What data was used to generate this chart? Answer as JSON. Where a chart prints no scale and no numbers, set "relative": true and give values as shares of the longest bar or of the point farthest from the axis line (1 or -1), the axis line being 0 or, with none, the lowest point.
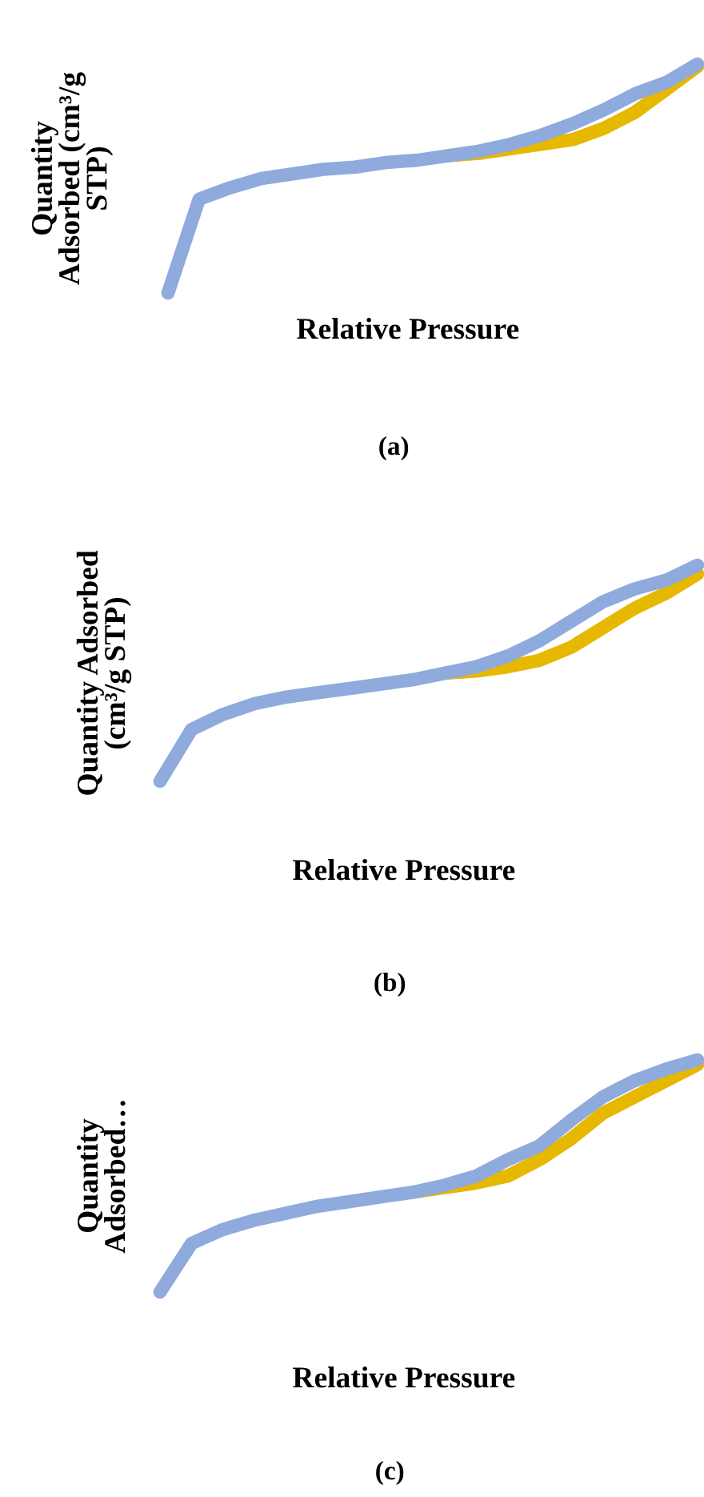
{
  "chart_data": [
    {
      "type": "line",
      "relative": true,
      "xlabel": "Relative Pressure",
      "ylabel": "Quantity\nAdsorbed (cm³/g\nSTP)",
      "annotations": [
        "(a)"
      ],
      "line_style": "solid",
      "categories": [
        null,
        null,
        null,
        null,
        null,
        null,
        null,
        null,
        null,
        null,
        null,
        null,
        null,
        null,
        null,
        null,
        null,
        null
      ],
      "series": [
        {
          "color": "#e6b800",
          "values": [
            null,
            null,
            null,
            null,
            null,
            null,
            null,
            null,
            null,
            0.6,
            0.61,
            0.63,
            0.65,
            0.67,
            0.72,
            0.79,
            0.89,
            0.99
          ]
        },
        {
          "color": "#8faadc",
          "values": [
            0,
            0.41,
            0.46,
            0.5,
            0.52,
            0.54,
            0.55,
            0.57,
            0.58,
            0.6,
            0.62,
            0.65,
            0.69,
            0.74,
            0.8,
            0.87,
            0.92,
            1.0
          ]
        }
      ]
    },
    {
      "type": "line",
      "relative": true,
      "xlabel": "Relative Pressure",
      "ylabel": "Quantity Adsorbed\n(cm³/g STP)",
      "annotations": [
        "(b)"
      ],
      "line_style": "solid",
      "categories": [
        null,
        null,
        null,
        null,
        null,
        null,
        null,
        null,
        null,
        null,
        null,
        null,
        null,
        null,
        null,
        null,
        null,
        null
      ],
      "series": [
        {
          "color": "#e6b800",
          "values": [
            null,
            null,
            null,
            null,
            null,
            null,
            null,
            null,
            null,
            0.5,
            0.51,
            0.53,
            0.56,
            0.62,
            0.71,
            0.8,
            0.87,
            0.96
          ]
        },
        {
          "color": "#8faadc",
          "values": [
            0,
            0.24,
            0.31,
            0.36,
            0.39,
            0.41,
            0.43,
            0.45,
            0.47,
            0.5,
            0.53,
            0.58,
            0.65,
            0.74,
            0.83,
            0.89,
            0.93,
            1.0
          ]
        }
      ]
    },
    {
      "type": "line",
      "relative": true,
      "xlabel": "Relative Pressure",
      "ylabel": "Quantity\nAdsorbed…",
      "annotations": [
        "(c)"
      ],
      "line_style": "solid",
      "categories": [
        null,
        null,
        null,
        null,
        null,
        null,
        null,
        null,
        null,
        null,
        null,
        null,
        null,
        null,
        null,
        null,
        null,
        null
      ],
      "series": [
        {
          "color": "#e6b800",
          "values": [
            null,
            null,
            null,
            null,
            null,
            null,
            null,
            null,
            0.43,
            0.45,
            0.47,
            0.5,
            0.57,
            0.66,
            0.77,
            0.84,
            0.91,
            0.98
          ]
        },
        {
          "color": "#8faadc",
          "values": [
            0,
            0.21,
            0.27,
            0.31,
            0.34,
            0.37,
            0.39,
            0.41,
            0.43,
            0.46,
            0.5,
            0.57,
            0.63,
            0.74,
            0.84,
            0.91,
            0.96,
            1.0
          ]
        }
      ]
    }
  ]
}
